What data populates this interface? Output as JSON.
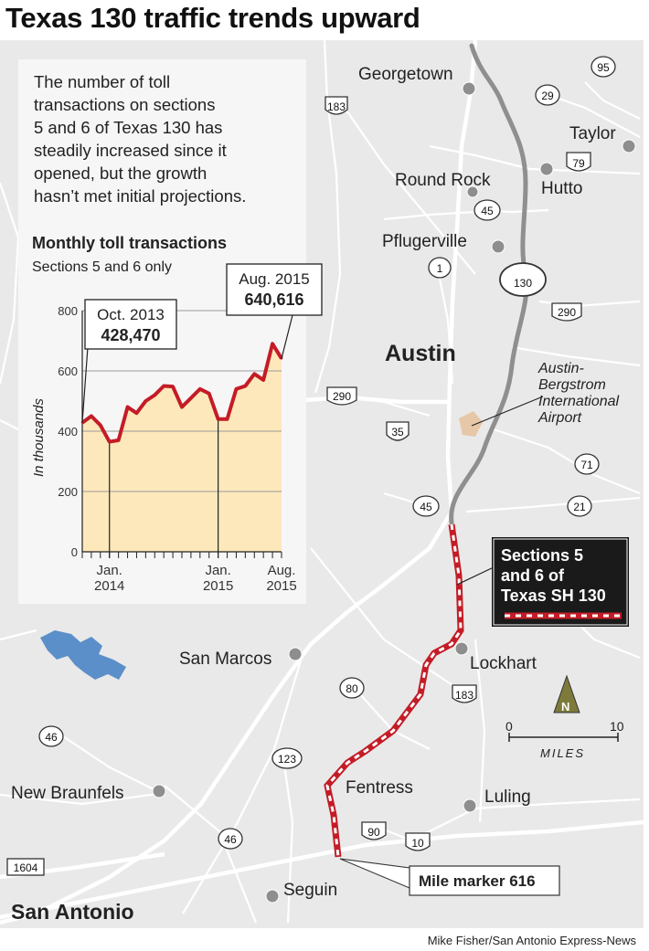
{
  "title": "Texas 130 traffic trends upward",
  "credit": "Mike Fisher/San Antonio Express-News",
  "intro_lines": [
    "The number of toll",
    "transactions on sections",
    "5 and 6 of Texas 130 has",
    "steadily increased since it",
    "opened, but the growth",
    "hasn’t met initial projections."
  ],
  "chart_data": {
    "type": "area",
    "title": "Monthly toll transactions",
    "subtitle": "Sections 5 and 6 only",
    "ylabel": "In thousands",
    "ylim": [
      0,
      800
    ],
    "yticks": [
      "0",
      "200",
      "400",
      "600",
      "800"
    ],
    "grid": true,
    "xtick_labels": [
      {
        "line1": "Jan.",
        "line2": "2014"
      },
      {
        "line1": "Jan.",
        "line2": "2015"
      },
      {
        "line1": "Aug.",
        "line2": "2015"
      }
    ],
    "x": [
      "2013-10",
      "2013-11",
      "2013-12",
      "2014-01",
      "2014-02",
      "2014-03",
      "2014-04",
      "2014-05",
      "2014-06",
      "2014-07",
      "2014-08",
      "2014-09",
      "2014-10",
      "2014-11",
      "2014-12",
      "2015-01",
      "2015-02",
      "2015-03",
      "2015-04",
      "2015-05",
      "2015-06",
      "2015-07",
      "2015-08"
    ],
    "values": [
      428,
      450,
      420,
      365,
      370,
      480,
      460,
      500,
      520,
      550,
      548,
      480,
      510,
      540,
      525,
      440,
      440,
      540,
      550,
      590,
      570,
      690,
      641
    ],
    "callouts": [
      {
        "label": "Oct. 2013",
        "value": "428,470"
      },
      {
        "label": "Aug. 2015",
        "value": "640,616"
      }
    ],
    "colors": {
      "line": "#c41c26",
      "fill": "#fde8bb"
    }
  },
  "map": {
    "places": {
      "georgetown": "Georgetown",
      "taylor": "Taylor",
      "round_rock": "Round Rock",
      "hutto": "Hutto",
      "pflugerville": "Pflugerville",
      "austin": "Austin",
      "airport": [
        "Austin-",
        "Bergstrom",
        "International",
        "Airport"
      ],
      "lockhart": "Lockhart",
      "san_marcos": "San Marcos",
      "fentress": "Fentress",
      "luling": "Luling",
      "new_braunfels": "New Braunfels",
      "seguin": "Seguin",
      "san_antonio": "San Antonio"
    },
    "shields": {
      "s95": "95",
      "s29": "29",
      "s183a": "183",
      "s79": "79",
      "s45a": "45",
      "s1": "1",
      "s130": "130",
      "s290a": "290",
      "s290b": "290",
      "s35": "35",
      "s71": "71",
      "s45b": "45",
      "s21": "21",
      "s183b": "183",
      "s80": "80",
      "s46a": "46",
      "s123": "123",
      "s46b": "46",
      "s90": "90",
      "s10": "10",
      "s1604": "1604"
    },
    "legend": [
      "Sections 5",
      "and 6 of",
      "Texas SH 130"
    ],
    "mile_marker": "Mile marker 616",
    "north": "N",
    "scale": {
      "min": "0",
      "max": "10",
      "unit": "MILES"
    },
    "colors": {
      "toll_road": "#c41c26",
      "background": "#e9e9e9",
      "roads": "#ffffff",
      "lake": "#5b8fc9",
      "sh130": "#8f8f8f"
    }
  }
}
